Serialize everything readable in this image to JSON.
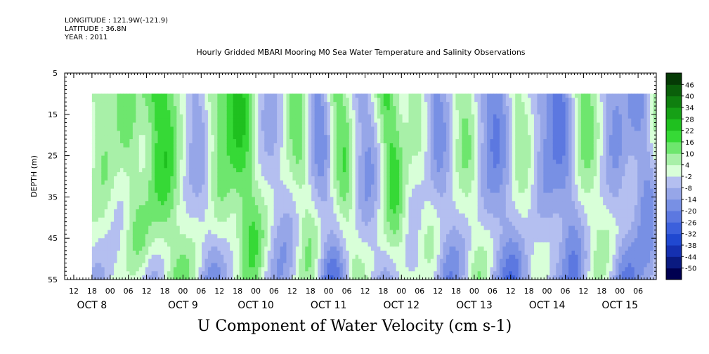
{
  "header": {
    "longitude": "LONGITUDE : 121.9W(-121.9)",
    "latitude": "LATITUDE : 36.8N",
    "year": "YEAR : 2011",
    "title": "Hourly Gridded MBARI Mooring M0 Sea Water Temperature and Salinity Observations"
  },
  "footer_title": "U Component of Water Velocity (cm s-1)",
  "chart_data": {
    "type": "heatmap",
    "title": "Hourly Gridded MBARI Mooring M0 Sea Water Temperature and Salinity Observations",
    "xlabel": "",
    "ylabel": "DEPTH (m)",
    "colorbar_label": "U Component of Water Velocity (cm s-1)",
    "y_axis": {
      "reversed": true,
      "range": [
        5,
        55
      ],
      "ticks": [
        5,
        15,
        25,
        35,
        45,
        55
      ],
      "tick_labels": [
        "5",
        "15",
        "25",
        "35",
        "45",
        "55"
      ]
    },
    "x_axis": {
      "start": "2011-10-07T09:00",
      "end": "2011-10-15T12:00",
      "hour_ticks": [
        {
          "t": "2011-10-07T12:00",
          "label": "12"
        },
        {
          "t": "2011-10-07T18:00",
          "label": "18"
        },
        {
          "t": "2011-10-08T00:00",
          "label": "00"
        },
        {
          "t": "2011-10-08T06:00",
          "label": "06"
        },
        {
          "t": "2011-10-08T12:00",
          "label": "12"
        },
        {
          "t": "2011-10-08T18:00",
          "label": "18"
        },
        {
          "t": "2011-10-09T00:00",
          "label": "00"
        },
        {
          "t": "2011-10-09T06:00",
          "label": "06"
        },
        {
          "t": "2011-10-09T12:00",
          "label": "12"
        },
        {
          "t": "2011-10-09T18:00",
          "label": "18"
        },
        {
          "t": "2011-10-10T00:00",
          "label": "00"
        },
        {
          "t": "2011-10-10T06:00",
          "label": "06"
        },
        {
          "t": "2011-10-10T12:00",
          "label": "12"
        },
        {
          "t": "2011-10-10T18:00",
          "label": "18"
        },
        {
          "t": "2011-10-11T00:00",
          "label": "00"
        },
        {
          "t": "2011-10-11T06:00",
          "label": "06"
        },
        {
          "t": "2011-10-11T12:00",
          "label": "12"
        },
        {
          "t": "2011-10-11T18:00",
          "label": "18"
        },
        {
          "t": "2011-10-12T00:00",
          "label": "00"
        },
        {
          "t": "2011-10-12T06:00",
          "label": "06"
        },
        {
          "t": "2011-10-12T12:00",
          "label": "12"
        },
        {
          "t": "2011-10-12T18:00",
          "label": "18"
        },
        {
          "t": "2011-10-13T00:00",
          "label": "00"
        },
        {
          "t": "2011-10-13T06:00",
          "label": "06"
        },
        {
          "t": "2011-10-13T12:00",
          "label": "12"
        },
        {
          "t": "2011-10-13T18:00",
          "label": "18"
        },
        {
          "t": "2011-10-14T00:00",
          "label": "00"
        },
        {
          "t": "2011-10-14T06:00",
          "label": "06"
        },
        {
          "t": "2011-10-14T12:00",
          "label": "12"
        },
        {
          "t": "2011-10-14T18:00",
          "label": "18"
        },
        {
          "t": "2011-10-15T00:00",
          "label": "00"
        },
        {
          "t": "2011-10-15T06:00",
          "label": "06"
        }
      ],
      "date_labels": [
        {
          "t": "2011-10-07T18:00",
          "label": "OCT  8"
        },
        {
          "t": "2011-10-09T00:00",
          "label": "OCT  9"
        },
        {
          "t": "2011-10-10T00:00",
          "label": "OCT 10"
        },
        {
          "t": "2011-10-11T00:00",
          "label": "OCT 11"
        },
        {
          "t": "2011-10-12T00:00",
          "label": "OCT 12"
        },
        {
          "t": "2011-10-13T00:00",
          "label": "OCT 13"
        },
        {
          "t": "2011-10-14T00:00",
          "label": "OCT 14"
        },
        {
          "t": "2011-10-15T00:00",
          "label": "OCT 15"
        }
      ]
    },
    "data_extent": {
      "time_start": "2011-10-07T18:00",
      "time_end": "2011-10-15T12:00",
      "depth_top": 10,
      "depth_bottom": 55
    },
    "colorbar": {
      "levels": [
        -50,
        -44,
        -38,
        -32,
        -26,
        -20,
        -14,
        -8,
        -2,
        4,
        10,
        16,
        22,
        28,
        34,
        40,
        46
      ],
      "labels": [
        "-50",
        "-44",
        "-38",
        "-32",
        "-26",
        "-20",
        "-14",
        "-8",
        "-2",
        "4",
        "10",
        "16",
        "22",
        "28",
        "34",
        "40",
        "46"
      ],
      "colors": [
        "#000050",
        "#0a1a80",
        "#1530b0",
        "#2048d0",
        "#3c60dc",
        "#5c78e0",
        "#7890e4",
        "#96a6e8",
        "#b4bff0",
        "#d8ffd8",
        "#a8f0a8",
        "#6ee66e",
        "#36d936",
        "#1fc01f",
        "#16a016",
        "#0f7f0f",
        "#0a5f0a",
        "#053a05"
      ]
    },
    "velocity_pattern": {
      "note_hidden": true,
      "band_times": [
        {
          "t": "2011-10-07T20:00",
          "v": 12,
          "w": 5
        },
        {
          "t": "2011-10-08T05:00",
          "v": 16,
          "w": 4
        },
        {
          "t": "2011-10-08T16:00",
          "v": 26,
          "w": 6
        },
        {
          "t": "2011-10-09T04:00",
          "v": -8,
          "w": 4
        },
        {
          "t": "2011-10-09T10:00",
          "v": 14,
          "w": 4
        },
        {
          "t": "2011-10-09T18:00",
          "v": 28,
          "w": 5
        },
        {
          "t": "2011-10-10T04:00",
          "v": -6,
          "w": 4
        },
        {
          "t": "2011-10-10T13:00",
          "v": 18,
          "w": 4
        },
        {
          "t": "2011-10-10T20:00",
          "v": -14,
          "w": 4
        },
        {
          "t": "2011-10-11T03:00",
          "v": 20,
          "w": 4
        },
        {
          "t": "2011-10-11T11:00",
          "v": -10,
          "w": 4
        },
        {
          "t": "2011-10-11T19:00",
          "v": 24,
          "w": 4
        },
        {
          "t": "2011-10-12T05:00",
          "v": 10,
          "w": 4
        },
        {
          "t": "2011-10-12T11:00",
          "v": -12,
          "w": 4
        },
        {
          "t": "2011-10-12T20:00",
          "v": 14,
          "w": 4
        },
        {
          "t": "2011-10-13T06:00",
          "v": -16,
          "w": 5
        },
        {
          "t": "2011-10-13T14:00",
          "v": 12,
          "w": 4
        },
        {
          "t": "2011-10-13T22:00",
          "v": -8,
          "w": 4
        },
        {
          "t": "2011-10-14T04:00",
          "v": -18,
          "w": 4
        },
        {
          "t": "2011-10-14T12:00",
          "v": 16,
          "w": 5
        },
        {
          "t": "2011-10-14T21:00",
          "v": -10,
          "w": 4
        },
        {
          "t": "2011-10-15T06:00",
          "v": -14,
          "w": 4
        },
        {
          "t": "2011-10-15T11:00",
          "v": 10,
          "w": 3
        }
      ]
    }
  }
}
